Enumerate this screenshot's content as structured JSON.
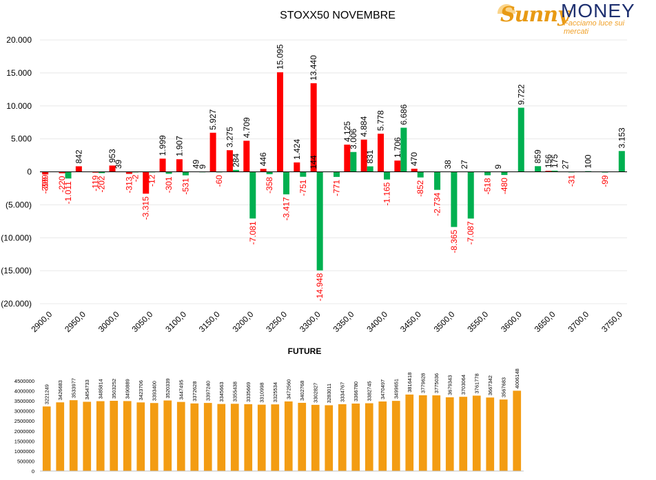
{
  "logo": {
    "brand_part1": "Sunny",
    "brand_part2": "MONEY",
    "tagline": "Facciamo luce sui mercati"
  },
  "colors": {
    "positive_series": "#00b050",
    "negative_series": "#ff0000",
    "future_bars": "#f39c12",
    "axis": "#000000"
  },
  "chart_data": [
    {
      "type": "bar",
      "title": "STOXX50 NOVEMBRE",
      "xlabel": "",
      "ylabel": "",
      "ylim": [
        -20000,
        20000
      ],
      "yticks": [
        20000,
        15000,
        10000,
        5000,
        0,
        -5000,
        -10000,
        -15000,
        -20000
      ],
      "ytick_labels": [
        "20.000",
        "15.000",
        "10.000",
        "5.000",
        "0",
        "(5.000)",
        "(10.000)",
        "(15.000)",
        "(20.000)"
      ],
      "legend": "none",
      "grid": true,
      "categories": [
        "2900,0",
        "2925,0",
        "2950,0",
        "2975,0",
        "3000,0",
        "3025,0",
        "3050,0",
        "3075,0",
        "3100,0",
        "3125,0",
        "3150,0",
        "3175,0",
        "3200,0",
        "3225,0",
        "3250,0",
        "3275,0",
        "3300,0",
        "3325,0",
        "3350,0",
        "3375,0",
        "3400,0",
        "3425,0",
        "3450,0",
        "3475,0",
        "3500,0",
        "3525,0",
        "3550,0",
        "3575,0",
        "3600,0",
        "3625,0",
        "3650,0",
        "3675,0",
        "3700,0",
        "3725,0",
        "3750,0"
      ],
      "category_labels": [
        "2900,0",
        "",
        "2950,0",
        "",
        "3000,0",
        "",
        "3050,0",
        "",
        "3100,0",
        "",
        "3150,0",
        "",
        "3200,0",
        "",
        "3250,0",
        "",
        "3300,0",
        "",
        "3350,0",
        "",
        "3400,0",
        "",
        "3450,0",
        "",
        "3500,0",
        "",
        "3550,0",
        "",
        "3600,0",
        "",
        "3650,0",
        "",
        "3700,0",
        "",
        "3750,0"
      ],
      "series": [
        {
          "color": "red",
          "values": [
            -399,
            -220,
            842,
            -119,
            953,
            -313,
            -3315,
            1999,
            1907,
            49,
            5927,
            3275,
            4709,
            446,
            15095,
            1424,
            13440,
            null,
            4125,
            4884,
            5778,
            1706,
            470,
            null,
            null,
            null,
            null,
            null,
            null,
            null,
            156,
            null,
            null,
            null,
            null
          ],
          "labels": [
            "-399",
            "-220",
            "842",
            "-119",
            "953",
            "-313",
            "-3.315",
            "1.999",
            "1.907",
            "49",
            "5.927",
            "3.275",
            "4.709",
            "446",
            "15.095",
            "1.424",
            "13.440",
            "",
            "4.125",
            "4.884",
            "5.778",
            "1.706",
            "470",
            "",
            "",
            "",
            "",
            "",
            "",
            "",
            "156",
            "",
            "",
            "",
            ""
          ]
        },
        {
          "color": "green",
          "values": [
            null,
            -1011,
            null,
            -202,
            39,
            -2,
            -12,
            -301,
            -531,
            9,
            -60,
            284,
            -7081,
            -358,
            -3417,
            -751,
            -14948,
            -771,
            3006,
            831,
            -1165,
            6686,
            -852,
            -2734,
            -8365,
            -7087,
            -518,
            -480,
            9722,
            859,
            175,
            -31,
            100,
            -99,
            3153
          ],
          "labels": [
            "",
            "-1.011",
            "",
            "-202",
            "39",
            "-2",
            "-12",
            "-301",
            "-531",
            "9",
            "-60",
            "284",
            "-7.081",
            "-358",
            "-3.417",
            "-751",
            "-14.948",
            "-771",
            "3.006",
            "831",
            "-1.165",
            "6.686",
            "-852",
            "-2.734",
            "-8.365",
            "-7.087",
            "-518",
            "-480",
            "9.722",
            "859",
            "175",
            "-31",
            "100",
            "-99",
            "3.153"
          ]
        }
      ],
      "extra_labels": [
        {
          "category": "2900,0",
          "text": "-399"
        },
        {
          "category": "3575,0",
          "text": "9"
        },
        {
          "category": "3500,0",
          "text": "38"
        },
        {
          "category": "3525,0",
          "text": "27"
        },
        {
          "category": "3300,0",
          "text": "144"
        },
        {
          "category": "3675,0",
          "text": "27"
        }
      ]
    },
    {
      "type": "bar",
      "title": "FUTURE",
      "xlabel": "",
      "ylabel": "",
      "ylim": [
        0,
        4500000
      ],
      "yticks": [
        0,
        500000,
        1000000,
        1500000,
        2000000,
        2500000,
        3000000,
        3500000,
        4000000,
        4500000
      ],
      "ytick_labels": [
        "0",
        "500000",
        "1000000",
        "1500000",
        "2000000",
        "2500000",
        "3000000",
        "3500000",
        "4000000",
        "4500000"
      ],
      "legend": "none",
      "values": [
        3221249,
        3426683,
        3533977,
        3454733,
        3485814,
        3503252,
        3490889,
        3423706,
        3393400,
        3520339,
        3447495,
        3372628,
        3397240,
        3345663,
        3355438,
        3335669,
        3310998,
        3325534,
        3472560,
        3402768,
        3302827,
        3283011,
        3334767,
        3366780,
        3382745,
        3470497,
        3499651,
        3816418,
        3779628,
        3775036,
        3679343,
        3703064,
        3761778,
        3667342,
        3567683,
        4006148
      ]
    }
  ]
}
